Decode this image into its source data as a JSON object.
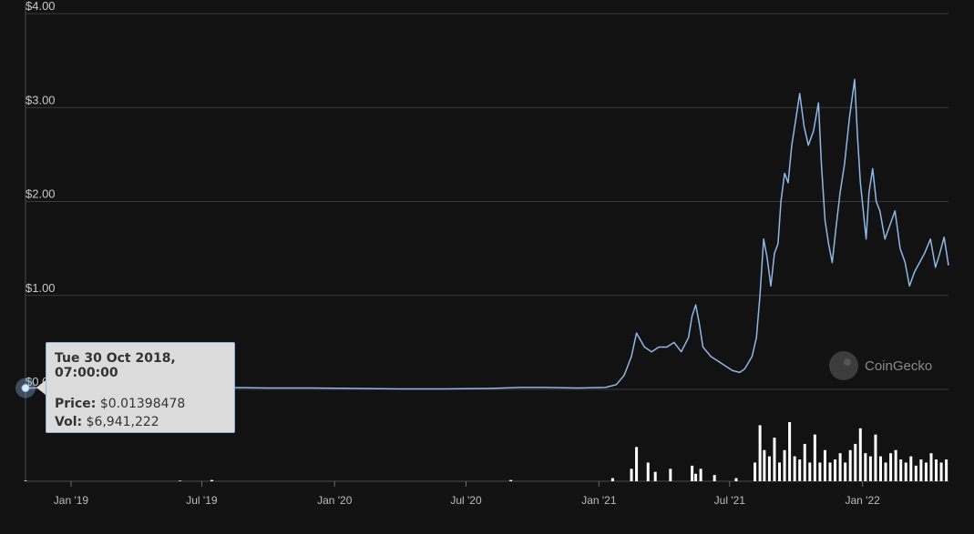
{
  "chart_data": {
    "type": "line",
    "title": "",
    "xlabel": "",
    "ylabel": "",
    "ylim": [
      0,
      4
    ],
    "yticks": [
      "$0.00",
      "$1.00",
      "$2.00",
      "$3.00",
      "$4.00"
    ],
    "ytick_values": [
      0,
      1,
      2,
      3,
      4
    ],
    "xticks": [
      "Jan '19",
      "Jul '19",
      "Jan '20",
      "Jul '20",
      "Jan '21",
      "Jul '21",
      "Jan '22"
    ],
    "xtick_dates": [
      "2019-01-01",
      "2019-07-01",
      "2020-01-01",
      "2020-07-01",
      "2021-01-01",
      "2021-07-01",
      "2022-01-01"
    ],
    "xlim": [
      "2018-10-30",
      "2022-04-30"
    ],
    "grid": true,
    "colors": {
      "price_line": "#8fb8e6",
      "volume_bars": "#ffffff",
      "background": "#121213",
      "grid": "#3a3a3c"
    },
    "series": [
      {
        "x": [
          "2018-10-30",
          "2018-12-01",
          "2019-02-01",
          "2019-04-01",
          "2019-06-01",
          "2019-08-01",
          "2019-10-01",
          "2019-12-01",
          "2020-02-01",
          "2020-04-01",
          "2020-06-01",
          "2020-08-01",
          "2020-09-15",
          "2020-10-15",
          "2020-12-01",
          "2021-01-10",
          "2021-01-25",
          "2021-02-05",
          "2021-02-15",
          "2021-02-22",
          "2021-03-05",
          "2021-03-15",
          "2021-03-25",
          "2021-04-05",
          "2021-04-15",
          "2021-04-25",
          "2021-05-05",
          "2021-05-10",
          "2021-05-15",
          "2021-05-20",
          "2021-05-25",
          "2021-06-05",
          "2021-06-15",
          "2021-06-25",
          "2021-07-05",
          "2021-07-15",
          "2021-07-22",
          "2021-08-01",
          "2021-08-07",
          "2021-08-12",
          "2021-08-17",
          "2021-08-22",
          "2021-08-27",
          "2021-09-01",
          "2021-09-06",
          "2021-09-10",
          "2021-09-15",
          "2021-09-20",
          "2021-09-25",
          "2021-10-01",
          "2021-10-06",
          "2021-10-12",
          "2021-10-18",
          "2021-10-25",
          "2021-11-01",
          "2021-11-05",
          "2021-11-10",
          "2021-11-15",
          "2021-11-20",
          "2021-11-25",
          "2021-12-01",
          "2021-12-07",
          "2021-12-14",
          "2021-12-21",
          "2021-12-25",
          "2021-12-29",
          "2022-01-02",
          "2022-01-06",
          "2022-01-10",
          "2022-01-15",
          "2022-01-20",
          "2022-01-25",
          "2022-02-01",
          "2022-02-08",
          "2022-02-15",
          "2022-02-22",
          "2022-03-01",
          "2022-03-07",
          "2022-03-14",
          "2022-03-21",
          "2022-03-28",
          "2022-04-05",
          "2022-04-12",
          "2022-04-18",
          "2022-04-24",
          "2022-04-30"
        ],
        "values": [
          0.014,
          0.02,
          0.02,
          0.02,
          0.02,
          0.02,
          0.015,
          0.015,
          0.01,
          0.005,
          0.005,
          0.01,
          0.02,
          0.02,
          0.015,
          0.02,
          0.05,
          0.15,
          0.35,
          0.6,
          0.45,
          0.4,
          0.45,
          0.45,
          0.5,
          0.4,
          0.55,
          0.78,
          0.9,
          0.7,
          0.45,
          0.35,
          0.3,
          0.25,
          0.2,
          0.18,
          0.22,
          0.35,
          0.55,
          1.0,
          1.6,
          1.4,
          1.1,
          1.45,
          1.55,
          2.0,
          2.3,
          2.2,
          2.6,
          2.9,
          3.15,
          2.8,
          2.6,
          2.75,
          3.05,
          2.4,
          1.8,
          1.55,
          1.35,
          1.7,
          2.1,
          2.4,
          2.9,
          3.3,
          2.7,
          2.2,
          1.9,
          1.6,
          2.1,
          2.35,
          2.0,
          1.9,
          1.6,
          1.75,
          1.9,
          1.5,
          1.35,
          1.1,
          1.25,
          1.35,
          1.45,
          1.6,
          1.3,
          1.45,
          1.62,
          1.32
        ]
      }
    ],
    "volume": {
      "x": [
        "2018-10-30",
        "2019-06-01",
        "2019-07-15",
        "2020-09-01",
        "2021-01-20",
        "2021-02-15",
        "2021-02-22",
        "2021-03-10",
        "2021-03-20",
        "2021-04-10",
        "2021-05-10",
        "2021-05-15",
        "2021-05-22",
        "2021-06-10",
        "2021-07-10",
        "2021-08-05",
        "2021-08-12",
        "2021-08-18",
        "2021-08-25",
        "2021-09-01",
        "2021-09-08",
        "2021-09-15",
        "2021-09-22",
        "2021-09-29",
        "2021-10-06",
        "2021-10-13",
        "2021-10-20",
        "2021-10-27",
        "2021-11-03",
        "2021-11-10",
        "2021-11-17",
        "2021-11-24",
        "2021-12-01",
        "2021-12-08",
        "2021-12-15",
        "2021-12-22",
        "2021-12-29",
        "2022-01-05",
        "2022-01-12",
        "2022-01-19",
        "2022-01-26",
        "2022-02-02",
        "2022-02-09",
        "2022-02-16",
        "2022-02-23",
        "2022-03-02",
        "2022-03-09",
        "2022-03-16",
        "2022-03-23",
        "2022-03-30",
        "2022-04-06",
        "2022-04-13",
        "2022-04-20",
        "2022-04-27"
      ],
      "values": [
        0.01,
        0.01,
        0.02,
        0.02,
        0.05,
        0.2,
        0.55,
        0.3,
        0.15,
        0.2,
        0.25,
        0.12,
        0.2,
        0.1,
        0.05,
        0.3,
        0.9,
        0.5,
        0.4,
        0.7,
        0.3,
        0.5,
        0.95,
        0.4,
        0.35,
        0.6,
        0.3,
        0.75,
        0.3,
        0.5,
        0.3,
        0.35,
        0.45,
        0.3,
        0.5,
        0.6,
        0.85,
        0.45,
        0.4,
        0.75,
        0.4,
        0.3,
        0.45,
        0.5,
        0.35,
        0.3,
        0.4,
        0.25,
        0.35,
        0.3,
        0.45,
        0.35,
        0.3,
        0.35
      ]
    }
  },
  "tooltip": {
    "date": "Tue 30 Oct 2018, 07:00:00",
    "price_label": "Price:",
    "price_value": "$0.01398478",
    "vol_label": "Vol:",
    "vol_value": "$6,941,222"
  },
  "watermark": {
    "text": "CoinGecko"
  }
}
